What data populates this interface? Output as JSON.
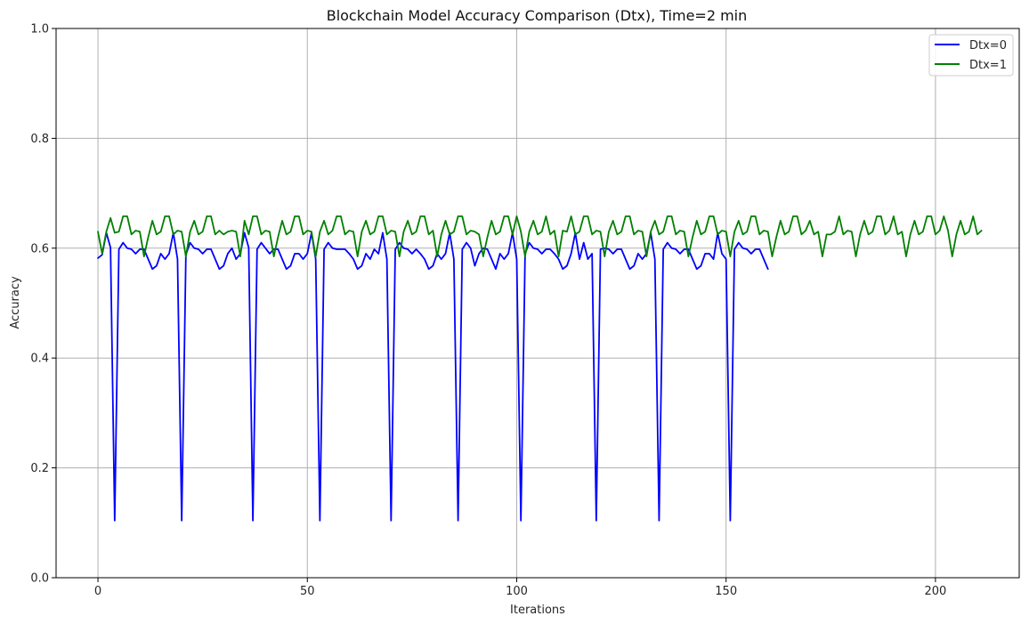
{
  "chart_data": {
    "type": "line",
    "title": "Blockchain Model Accuracy Comparison (Dtx), Time=2 min",
    "xlabel": "Iterations",
    "ylabel": "Accuracy",
    "xlim": [
      -10,
      220
    ],
    "ylim": [
      0,
      1.0
    ],
    "xticks": [
      0,
      50,
      100,
      150,
      200
    ],
    "yticks": [
      0.0,
      0.2,
      0.4,
      0.6,
      0.8,
      1.0
    ],
    "xtick_labels": [
      "0",
      "50",
      "100",
      "150",
      "200"
    ],
    "ytick_labels": [
      "0.0",
      "0.2",
      "0.4",
      "0.6",
      "0.8",
      "1.0"
    ],
    "grid": true,
    "legend_position": "top-right",
    "series": [
      {
        "name": "Dtx=0",
        "color": "#0000ff",
        "y": [
          0.582,
          0.588,
          0.628,
          0.601,
          0.104,
          0.598,
          0.61,
          0.6,
          0.598,
          0.59,
          0.598,
          0.598,
          0.58,
          0.562,
          0.568,
          0.59,
          0.58,
          0.59,
          0.628,
          0.58,
          0.104,
          0.588,
          0.61,
          0.6,
          0.598,
          0.59,
          0.598,
          0.598,
          0.58,
          0.562,
          0.568,
          0.59,
          0.6,
          0.58,
          0.59,
          0.628,
          0.601,
          0.104,
          0.598,
          0.61,
          0.6,
          0.59,
          0.598,
          0.598,
          0.58,
          0.562,
          0.568,
          0.59,
          0.59,
          0.58,
          0.59,
          0.628,
          0.58,
          0.104,
          0.598,
          0.61,
          0.6,
          0.598,
          0.598,
          0.598,
          0.59,
          0.58,
          0.562,
          0.568,
          0.59,
          0.58,
          0.598,
          0.59,
          0.628,
          0.58,
          0.104,
          0.598,
          0.61,
          0.6,
          0.598,
          0.59,
          0.598,
          0.59,
          0.58,
          0.562,
          0.568,
          0.59,
          0.58,
          0.59,
          0.628,
          0.58,
          0.104,
          0.598,
          0.61,
          0.6,
          0.568,
          0.59,
          0.6,
          0.598,
          0.58,
          0.562,
          0.59,
          0.58,
          0.59,
          0.628,
          0.58,
          0.104,
          0.59,
          0.61,
          0.6,
          0.598,
          0.59,
          0.598,
          0.598,
          0.59,
          0.58,
          0.562,
          0.568,
          0.59,
          0.628,
          0.58,
          0.61,
          0.58,
          0.59,
          0.104,
          0.598,
          0.6,
          0.598,
          0.59,
          0.598,
          0.598,
          0.58,
          0.562,
          0.568,
          0.59,
          0.58,
          0.59,
          0.628,
          0.58,
          0.104,
          0.598,
          0.61,
          0.6,
          0.598,
          0.59,
          0.598,
          0.598,
          0.58,
          0.562,
          0.568,
          0.59,
          0.59,
          0.58,
          0.628,
          0.59,
          0.58,
          0.104,
          0.598,
          0.61,
          0.6,
          0.598,
          0.59,
          0.598,
          0.598,
          0.58,
          0.562
        ]
      },
      {
        "name": "Dtx=1",
        "color": "#008000",
        "y": [
          0.63,
          0.59,
          0.63,
          0.655,
          0.628,
          0.63,
          0.658,
          0.658,
          0.625,
          0.632,
          0.63,
          0.585,
          0.62,
          0.65,
          0.625,
          0.63,
          0.658,
          0.658,
          0.625,
          0.632,
          0.63,
          0.585,
          0.63,
          0.65,
          0.625,
          0.63,
          0.658,
          0.658,
          0.625,
          0.632,
          0.625,
          0.63,
          0.632,
          0.63,
          0.585,
          0.65,
          0.625,
          0.658,
          0.658,
          0.625,
          0.632,
          0.63,
          0.585,
          0.62,
          0.65,
          0.625,
          0.63,
          0.658,
          0.658,
          0.625,
          0.632,
          0.63,
          0.585,
          0.63,
          0.65,
          0.625,
          0.632,
          0.658,
          0.658,
          0.625,
          0.632,
          0.63,
          0.585,
          0.63,
          0.65,
          0.625,
          0.63,
          0.658,
          0.658,
          0.625,
          0.632,
          0.63,
          0.585,
          0.63,
          0.65,
          0.625,
          0.63,
          0.658,
          0.658,
          0.625,
          0.632,
          0.585,
          0.625,
          0.65,
          0.625,
          0.63,
          0.658,
          0.658,
          0.625,
          0.632,
          0.63,
          0.625,
          0.585,
          0.62,
          0.65,
          0.625,
          0.63,
          0.658,
          0.658,
          0.625,
          0.658,
          0.63,
          0.585,
          0.63,
          0.65,
          0.625,
          0.63,
          0.658,
          0.625,
          0.632,
          0.585,
          0.632,
          0.63,
          0.658,
          0.625,
          0.63,
          0.658,
          0.658,
          0.625,
          0.632,
          0.63,
          0.585,
          0.63,
          0.65,
          0.625,
          0.63,
          0.658,
          0.658,
          0.625,
          0.632,
          0.63,
          0.585,
          0.63,
          0.65,
          0.625,
          0.63,
          0.658,
          0.658,
          0.625,
          0.632,
          0.63,
          0.585,
          0.62,
          0.65,
          0.625,
          0.63,
          0.658,
          0.658,
          0.625,
          0.632,
          0.63,
          0.585,
          0.63,
          0.65,
          0.625,
          0.63,
          0.658,
          0.658,
          0.625,
          0.632,
          0.63,
          0.585,
          0.62,
          0.65,
          0.625,
          0.63,
          0.658,
          0.658,
          0.625,
          0.632,
          0.65,
          0.625,
          0.63,
          0.585,
          0.625,
          0.625,
          0.63,
          0.658,
          0.625,
          0.632,
          0.63,
          0.585,
          0.625,
          0.65,
          0.625,
          0.63,
          0.658,
          0.658,
          0.625,
          0.632,
          0.658,
          0.625,
          0.63,
          0.585,
          0.625,
          0.65,
          0.625,
          0.63,
          0.658,
          0.658,
          0.625,
          0.632,
          0.658,
          0.632,
          0.585,
          0.625,
          0.65,
          0.625,
          0.63,
          0.658,
          0.625,
          0.632
        ]
      }
    ]
  }
}
